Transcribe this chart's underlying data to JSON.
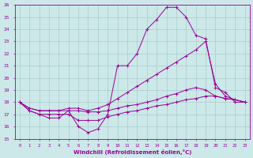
{
  "xlabel": "Windchill (Refroidissement éolien,°C)",
  "xlim": [
    -0.5,
    23.5
  ],
  "ylim": [
    15,
    26
  ],
  "yticks": [
    15,
    16,
    17,
    18,
    19,
    20,
    21,
    22,
    23,
    24,
    25,
    26
  ],
  "xticks": [
    0,
    1,
    2,
    3,
    4,
    5,
    6,
    7,
    8,
    9,
    10,
    11,
    12,
    13,
    14,
    15,
    16,
    17,
    18,
    19,
    20,
    21,
    22,
    23
  ],
  "background_color": "#cce8e8",
  "grid_color": "#aacccc",
  "line_color": "#990099",
  "series": [
    {
      "x": [
        0,
        1,
        2,
        3,
        4,
        5,
        6,
        7,
        8,
        9,
        10,
        11,
        12,
        13,
        14,
        15,
        16,
        17,
        18,
        19,
        20,
        21,
        22,
        23
      ],
      "y": [
        18.0,
        17.3,
        17.0,
        16.7,
        16.7,
        17.3,
        16.0,
        15.5,
        15.8,
        17.0,
        21.0,
        21.0,
        22.0,
        24.0,
        24.8,
        25.8,
        25.8,
        25.0,
        23.5,
        23.2,
        19.2,
        18.8,
        18.0,
        18.0
      ]
    },
    {
      "x": [
        0,
        1,
        2,
        3,
        4,
        5,
        6,
        7,
        8,
        9,
        10,
        11,
        12,
        13,
        14,
        15,
        16,
        17,
        18,
        19,
        20,
        21,
        22,
        23
      ],
      "y": [
        18.0,
        17.5,
        17.3,
        17.3,
        17.3,
        17.5,
        17.5,
        17.3,
        17.5,
        17.8,
        18.3,
        18.8,
        19.3,
        19.8,
        20.3,
        20.8,
        21.3,
        21.8,
        22.3,
        23.0,
        19.5,
        18.5,
        18.2,
        18.0
      ]
    },
    {
      "x": [
        0,
        1,
        2,
        3,
        4,
        5,
        6,
        7,
        8,
        9,
        10,
        11,
        12,
        13,
        14,
        15,
        16,
        17,
        18,
        19,
        20,
        21,
        22,
        23
      ],
      "y": [
        18.0,
        17.5,
        17.3,
        17.3,
        17.3,
        17.3,
        17.3,
        17.2,
        17.2,
        17.3,
        17.5,
        17.7,
        17.8,
        18.0,
        18.2,
        18.5,
        18.7,
        19.0,
        19.2,
        19.0,
        18.5,
        18.3,
        18.2,
        18.0
      ]
    },
    {
      "x": [
        0,
        1,
        2,
        3,
        4,
        5,
        6,
        7,
        8,
        9,
        10,
        11,
        12,
        13,
        14,
        15,
        16,
        17,
        18,
        19,
        20,
        21,
        22,
        23
      ],
      "y": [
        18.0,
        17.3,
        17.0,
        17.0,
        17.0,
        17.0,
        16.5,
        16.5,
        16.5,
        16.8,
        17.0,
        17.2,
        17.3,
        17.5,
        17.7,
        17.8,
        18.0,
        18.2,
        18.3,
        18.5,
        18.5,
        18.3,
        18.2,
        18.0
      ]
    }
  ]
}
